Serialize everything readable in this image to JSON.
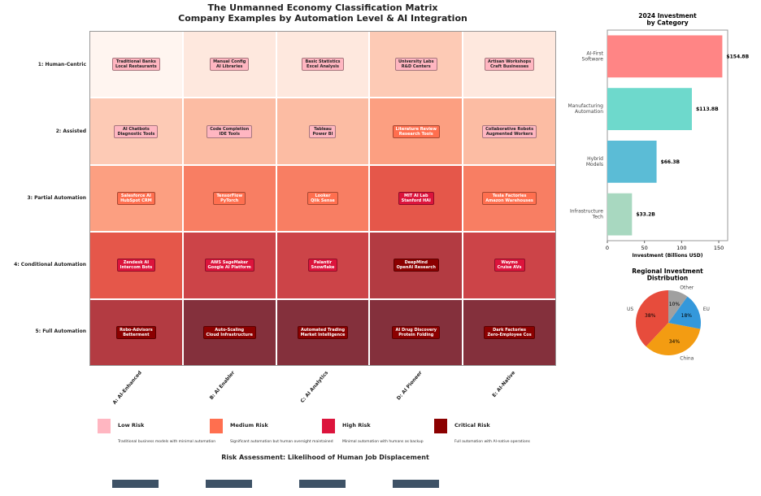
{
  "chart_data": [
    {
      "type": "heatmap",
      "title": "The Unmanned Economy Classification Matrix",
      "subtitle": "Company Examples by Automation Level & AI Integration",
      "rows": [
        "1: Human-Centric",
        "2: Assisted",
        "3: Partial Automation",
        "4: Conditional Automation",
        "5: Full Automation"
      ],
      "columns": [
        "A: AI-Enhanced",
        "B: AI Enabler",
        "C: AI Analytics",
        "D: AI Pioneer",
        "E: AI-Native"
      ],
      "intensity": [
        [
          0,
          1,
          1,
          2,
          1
        ],
        [
          2,
          3,
          3,
          4,
          3
        ],
        [
          4,
          5,
          5,
          6,
          5
        ],
        [
          6,
          7,
          7,
          8,
          7
        ],
        [
          8,
          9,
          9,
          9,
          9
        ]
      ],
      "cells": [
        [
          "Traditional Banks\nLocal Restaurants",
          "Manual Config\nAI Libraries",
          "Basic Statistics\nExcel Analysis",
          "University Labs\nR&D Centers",
          "Artisan Workshops\nCraft Businesses"
        ],
        [
          "AI Chatbots\nDiagnostic Tools",
          "Code Completion\nIDE Tools",
          "Tableau\nPower BI",
          "Literature Review\nResearch Tools",
          "Collaborative Robots\nAugmented Workers"
        ],
        [
          "Salesforce AI\nHubSpot CRM",
          "TensorFlow\nPyTorch",
          "Looker\nQlik Sense",
          "MIT AI Lab\nStanford HAI",
          "Tesla Factories\nAmazon Warehouses"
        ],
        [
          "Zendesk AI\nIntercom Bots",
          "AWS SageMaker\nGoogle AI Platform",
          "Palantir\nSnowflake",
          "DeepMind\nOpenAI Research",
          "Waymo\nCruise AVs"
        ],
        [
          "Robo-Advisors\nBetterment",
          "Auto-Scaling\nCloud Infrastructure",
          "Automated Trading\nMarket Intelligence",
          "AI Drug Discovery\nProtein Folding",
          "Dark Factories\nZero-Employee Cos"
        ]
      ],
      "risk": [
        [
          "low",
          "low",
          "low",
          "low",
          "low"
        ],
        [
          "low",
          "low",
          "low",
          "medium",
          "low"
        ],
        [
          "medium",
          "medium",
          "medium",
          "high",
          "medium"
        ],
        [
          "high",
          "high",
          "high",
          "critical",
          "high"
        ],
        [
          "critical",
          "critical",
          "critical",
          "critical",
          "critical"
        ]
      ],
      "legend": [
        {
          "key": "low",
          "label": "Low Risk",
          "color": "#ffb6c1",
          "desc": "Traditional business models with minimal automation"
        },
        {
          "key": "medium",
          "label": "Medium Risk",
          "color": "#ff6f4f",
          "desc": "Significant automation but human oversight maintained"
        },
        {
          "key": "high",
          "label": "High Risk",
          "color": "#dc143c",
          "desc": "Minimal automation with humans as backup"
        },
        {
          "key": "critical",
          "label": "Critical Risk",
          "color": "#8b0000",
          "desc": "Full automation with AI-native operations"
        }
      ],
      "legend_title": "Risk Assessment: Likelihood of Human Job Displacement"
    },
    {
      "type": "bar",
      "orientation": "horizontal",
      "title": "2024 Investment\nby Category",
      "xlabel": "Investment (Billions USD)",
      "xlim": [
        0,
        162
      ],
      "xticks": [
        0,
        50,
        100,
        150
      ],
      "categories": [
        "Infrastructure\nTech",
        "Hybrid\nModels",
        "Manufacturing\nAutomation",
        "AI-First\nSoftware"
      ],
      "values": [
        33.2,
        66.3,
        113.8,
        154.8
      ],
      "labels": [
        "$33.2B",
        "$66.3B",
        "$113.8B",
        "$154.8B"
      ],
      "colors": [
        "#a8d8c0",
        "#5bbcd6",
        "#6ed9cc",
        "#ff8585"
      ]
    },
    {
      "type": "pie",
      "title": "Regional Investment\nDistribution",
      "labels": [
        "US",
        "China",
        "EU",
        "Other"
      ],
      "values": [
        38,
        34,
        18,
        10
      ],
      "pct_labels": [
        "38%",
        "34%",
        "18%",
        "10%"
      ],
      "colors": [
        "#e74c3c",
        "#f39c12",
        "#3498db",
        "#a0a0a0"
      ]
    }
  ]
}
